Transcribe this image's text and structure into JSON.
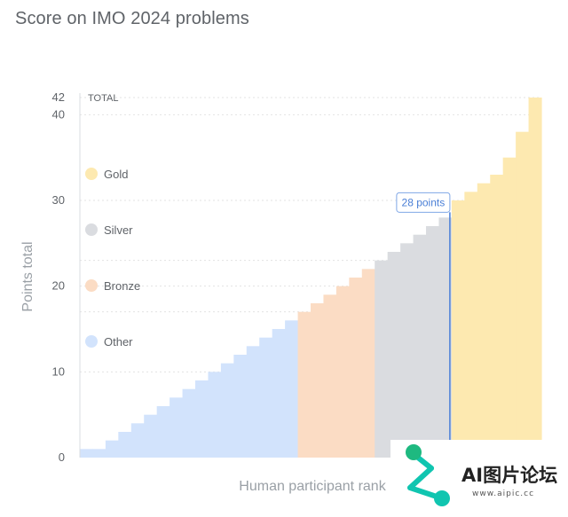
{
  "title": "Score on IMO 2024 problems",
  "chart_data": {
    "type": "bar",
    "title": "Score on IMO 2024 problems",
    "xlabel": "Human participant rank",
    "ylabel": "Points total",
    "ylim": [
      0,
      42
    ],
    "y_ticks": [
      0,
      10,
      20,
      30,
      40,
      42
    ],
    "y_tick_labels": [
      "0",
      "10",
      "20",
      "30",
      "40",
      "42"
    ],
    "reference_lines": [
      {
        "label": "TOTAL",
        "value": 42
      }
    ],
    "grid": true,
    "legend": [
      "Gold",
      "Silver",
      "Bronze",
      "Other"
    ],
    "legend_position": "left",
    "annotation": {
      "label": "28 points",
      "value": 28
    },
    "colors": {
      "Gold": "#fde9b0",
      "Silver": "#dadce0",
      "Bronze": "#fbdcc4",
      "Other": "#d2e3fc"
    },
    "series": [
      {
        "name": "Other",
        "values": [
          1,
          1,
          2,
          3,
          4,
          5,
          6,
          7,
          8,
          9,
          10,
          11,
          12,
          13,
          14,
          15,
          16
        ]
      },
      {
        "name": "Bronze",
        "values": [
          17,
          18,
          19,
          20,
          21,
          22
        ]
      },
      {
        "name": "Silver",
        "values": [
          23,
          24,
          25,
          26,
          27,
          28
        ]
      },
      {
        "name": "Gold",
        "values": [
          30,
          31,
          32,
          33,
          35,
          38,
          42
        ]
      }
    ]
  },
  "watermark": {
    "text": "AI图片论坛",
    "sub": "www.aipic.cc"
  }
}
